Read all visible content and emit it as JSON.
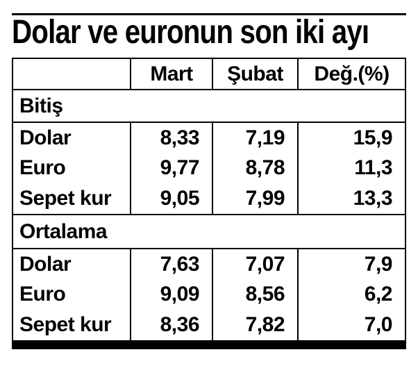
{
  "title": "Dolar ve euronun son iki ayı",
  "colors": {
    "text": "#000000",
    "background": "#ffffff",
    "rule": "#000000"
  },
  "table": {
    "columns": [
      "",
      "Mart",
      "Şubat",
      "Değ.(%)"
    ],
    "sections": [
      {
        "label": "Bitiş",
        "rows": [
          {
            "label": "Dolar",
            "mart": "8,33",
            "subat": "7,19",
            "deg": "15,9"
          },
          {
            "label": "Euro",
            "mart": "9,77",
            "subat": "8,78",
            "deg": "11,3"
          },
          {
            "label": "Sepet kur",
            "mart": "9,05",
            "subat": "7,99",
            "deg": "13,3"
          }
        ]
      },
      {
        "label": "Ortalama",
        "rows": [
          {
            "label": "Dolar",
            "mart": "7,63",
            "subat": "7,07",
            "deg": "7,9"
          },
          {
            "label": "Euro",
            "mart": "9,09",
            "subat": "8,56",
            "deg": "6,2"
          },
          {
            "label": "Sepet kur",
            "mart": "8,36",
            "subat": "7,82",
            "deg": "7,0"
          }
        ]
      }
    ]
  },
  "chart_data": {
    "type": "table",
    "title": "Dolar ve euronun son iki ayı",
    "columns": [
      "",
      "Mart",
      "Şubat",
      "Değ.(%)"
    ],
    "sections": [
      {
        "label": "Bitiş",
        "rows": [
          [
            "Dolar",
            8.33,
            7.19,
            15.9
          ],
          [
            "Euro",
            9.77,
            8.78,
            11.3
          ],
          [
            "Sepet kur",
            9.05,
            7.99,
            13.3
          ]
        ]
      },
      {
        "label": "Ortalama",
        "rows": [
          [
            "Dolar",
            7.63,
            7.07,
            7.9
          ],
          [
            "Euro",
            9.09,
            8.56,
            6.2
          ],
          [
            "Sepet kur",
            8.36,
            7.82,
            7.0
          ]
        ]
      }
    ]
  }
}
